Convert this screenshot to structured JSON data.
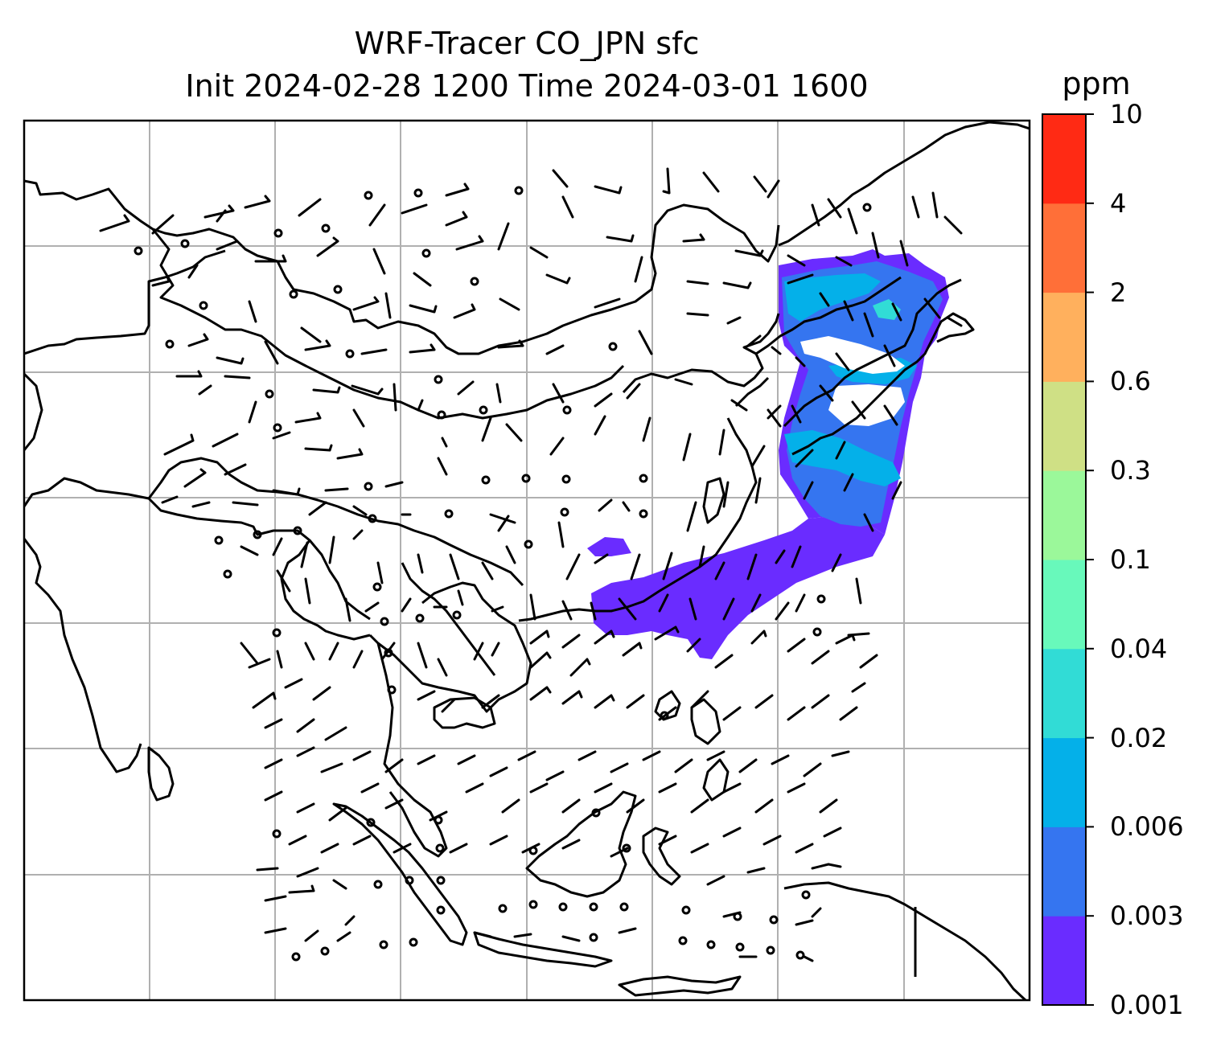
{
  "title": {
    "line1": "WRF-Tracer CO_JPN sfc",
    "line2": "Init 2024-02-28 1200 Time 2024-03-01 1600"
  },
  "colorbar": {
    "unit": "ppm",
    "levels": [
      "0.001",
      "0.003",
      "0.006",
      "0.02",
      "0.04",
      "0.1",
      "0.3",
      "0.6",
      "2",
      "4",
      "10"
    ],
    "colors": [
      "#6a2cff",
      "#3575f0",
      "#04b0e9",
      "#31dcd6",
      "#68f9bb",
      "#9bf89a",
      "#cfe085",
      "#ffb05d",
      "#ff6f38",
      "#ff2a14"
    ]
  },
  "map": {
    "field": "CO_JPN",
    "gridlines": true,
    "wind_barbs": true
  }
}
